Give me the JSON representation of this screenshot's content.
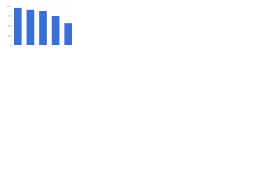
{
  "chart_data": {
    "type": "bar",
    "categories": [
      null,
      null,
      null,
      null,
      null
    ],
    "values": [
      96,
      92,
      88,
      75,
      58
    ],
    "color": "#3b6fd8",
    "ylim": [
      0,
      100
    ],
    "yticks": [
      0,
      25,
      50,
      75,
      100
    ],
    "grid": true
  }
}
